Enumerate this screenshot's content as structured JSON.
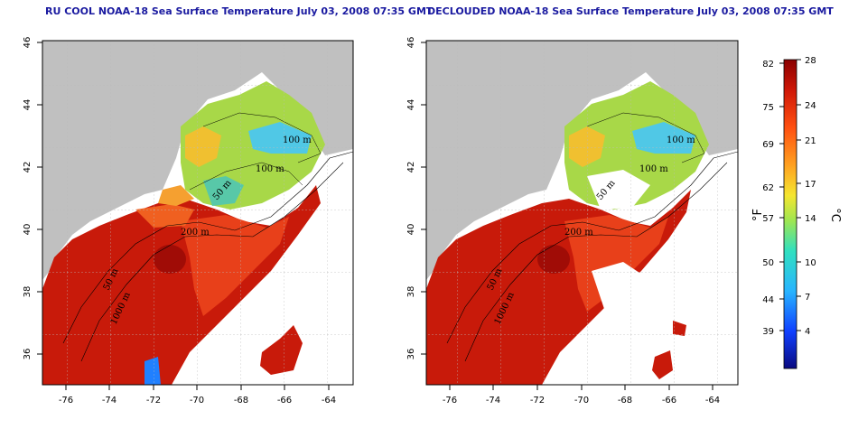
{
  "titles": {
    "left": "RU COOL NOAA-18 Sea Surface Temperature July 03, 2008 07:35 GMT",
    "right": "DECLOUDED NOAA-18 Sea Surface Temperature July 03, 2008 07:35 GMT"
  },
  "axes": {
    "lon_ticks": [
      "-76",
      "-74",
      "-72",
      "-70",
      "-68",
      "-66",
      "-64"
    ],
    "lat_ticks": [
      "36",
      "38",
      "40",
      "42",
      "44",
      "46"
    ]
  },
  "contour_labels": [
    "100 m",
    "100 m",
    "50 m",
    "200 m",
    "50 m",
    "1000 m"
  ],
  "colorbar": {
    "fahrenheit_unit": "°F",
    "celsius_unit": "°C",
    "fahrenheit_ticks": [
      "82",
      "75",
      "69",
      "62",
      "57",
      "50",
      "44",
      "39"
    ],
    "celsius_ticks": [
      "28",
      "24",
      "21",
      "17",
      "14",
      "10",
      "7",
      "4"
    ]
  },
  "colors": {
    "land": "#c0c0c0",
    "title_blue": "#1a1aa0",
    "warm": "#c81a0a",
    "cool": "#50c8e6"
  }
}
